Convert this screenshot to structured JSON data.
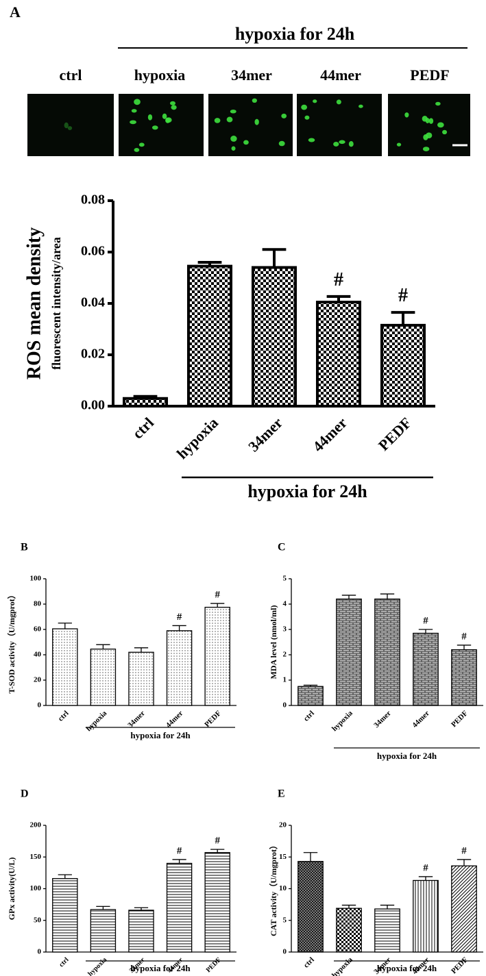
{
  "figure": {
    "panel_label": "A",
    "group_label": "hypoxia for 24h",
    "image_labels": [
      "ctrl",
      "hypoxia",
      "34mer",
      "44mer",
      "PEDF"
    ]
  },
  "chart_data": [
    {
      "type": "bar",
      "y_label": [
        "ROS mean density",
        "fluorescent intensity/area"
      ],
      "color": "#000000",
      "categories": [
        "ctrl",
        "hypoxia",
        "34mer",
        "44mer",
        "PEDF"
      ],
      "values": [
        0.003,
        0.0545,
        0.054,
        0.0405,
        0.0315
      ],
      "errors": [
        0.0008,
        0.0015,
        0.007,
        0.0022,
        0.005
      ],
      "markers": [
        null,
        null,
        null,
        "#",
        "#"
      ],
      "group_label": "hypoxia for 24h",
      "ylim": [
        0,
        0.08
      ],
      "yticks": [
        {
          "value": 0,
          "label": "0.00"
        },
        {
          "value": 0.02,
          "label": "0.02"
        },
        {
          "value": 0.04,
          "label": "0.04"
        },
        {
          "value": 0.06,
          "label": "0.06"
        },
        {
          "value": 0.08,
          "label": "0.08"
        }
      ]
    },
    {
      "type": "bar",
      "panel_label": "B",
      "y_label": [
        "T-SOD activity（U/mgprot）"
      ],
      "color": "#000000",
      "categories": [
        "ctrl",
        "hypoxia",
        "34mer",
        "44mer",
        "PEDF"
      ],
      "values": [
        60.5,
        44.5,
        42,
        59,
        77.5
      ],
      "errors": [
        4.5,
        3.5,
        3.5,
        4,
        3
      ],
      "markers": [
        null,
        null,
        null,
        "#",
        "#"
      ],
      "group_label": "hypoxia for 24h",
      "ylim": [
        0,
        100
      ],
      "yticks": [
        0,
        20,
        40,
        60,
        80,
        100
      ]
    },
    {
      "type": "bar",
      "panel_label": "C",
      "y_label": [
        "MDA level (nmol/ml)"
      ],
      "color": "#000000",
      "categories": [
        "ctrl",
        "hypoxia",
        "34mer",
        "44mer",
        "PEDF"
      ],
      "values": [
        0.75,
        4.2,
        4.2,
        2.85,
        2.2
      ],
      "errors": [
        0.05,
        0.15,
        0.2,
        0.15,
        0.18
      ],
      "markers": [
        null,
        null,
        null,
        "#",
        "#"
      ],
      "group_label": "hypoxia for 24h",
      "ylim": [
        0,
        5
      ],
      "yticks": [
        0,
        1,
        2,
        3,
        4,
        5
      ]
    },
    {
      "type": "bar",
      "panel_label": "D",
      "y_label": [
        "GPx activity(U/L)"
      ],
      "color": "#000000",
      "categories": [
        "ctrl",
        "hypoxia",
        "34mer",
        "44mer",
        "PEDF"
      ],
      "values": [
        116,
        67,
        66,
        140,
        157
      ],
      "errors": [
        6,
        5,
        4,
        6,
        5
      ],
      "markers": [
        null,
        null,
        null,
        "#",
        "#"
      ],
      "group_label": "hypoxia for 24h",
      "ylim": [
        0,
        200
      ],
      "yticks": [
        0,
        50,
        100,
        150,
        200
      ]
    },
    {
      "type": "bar",
      "panel_label": "E",
      "y_label": [
        "CAT activity（U/mgprot）"
      ],
      "color": "#000000",
      "categories": [
        "ctrl",
        "hypoxia",
        "34mer",
        "44mer",
        "PEDF"
      ],
      "values": [
        14.3,
        6.9,
        6.8,
        11.3,
        13.6
      ],
      "errors": [
        1.4,
        0.5,
        0.6,
        0.6,
        1.0
      ],
      "markers": [
        null,
        null,
        null,
        "#",
        "#"
      ],
      "group_label": "hypoxia for 24h",
      "ylim": [
        0,
        20
      ],
      "yticks": [
        0,
        5,
        10,
        15,
        20
      ]
    }
  ]
}
